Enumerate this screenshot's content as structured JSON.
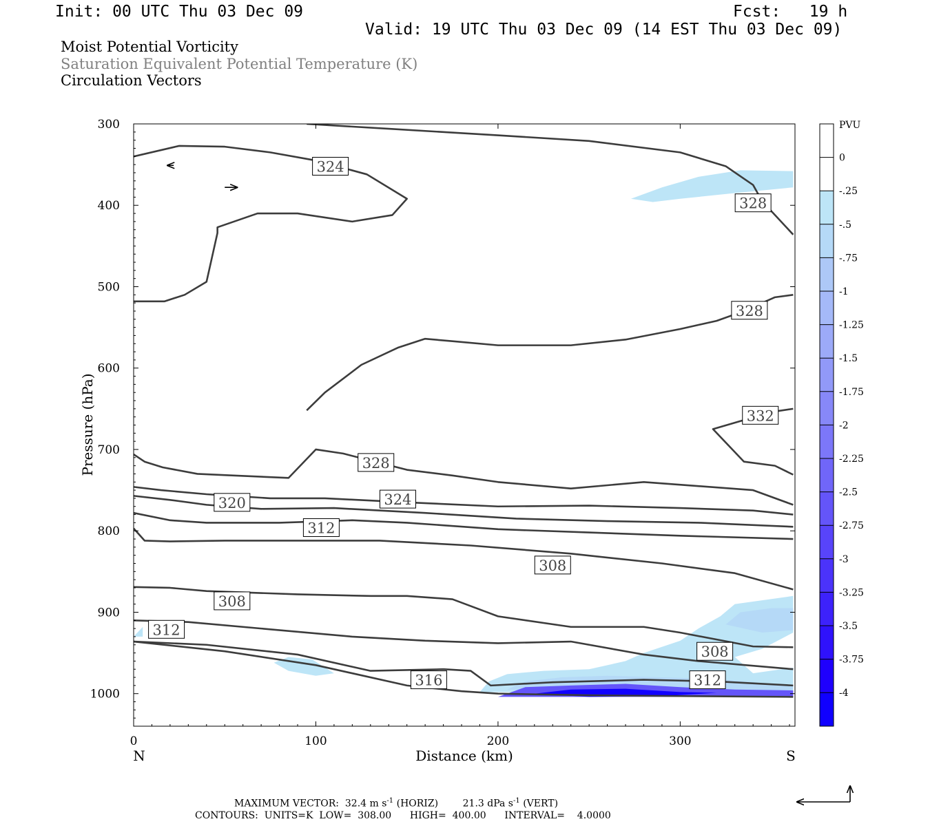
{
  "header": {
    "init": "Init: 00 UTC Thu 03 Dec 09",
    "fcst": "Fcst:   19 h",
    "valid": "Valid: 19 UTC Thu 03 Dec 09 (14 EST Thu 03 Dec 09)"
  },
  "titles": {
    "line1": "Moist Potential Vorticity",
    "line2": "Saturation Equivalent Potential Temperature (K)",
    "line3": "Circulation Vectors",
    "line2_color": "#808080"
  },
  "footer": {
    "max_vector_prefix": "MAXIMUM VECTOR:  32.4 m s",
    "max_vector_mid": " (HORIZ)        21.3 dPa s",
    "max_vector_end": " (VERT)",
    "sup": "-1",
    "contours": "CONTOURS:  UNITS=K  LOW=  308.00      HIGH=  400.00      INTERVAL=    4.0000"
  },
  "chart_data": {
    "type": "cross-section",
    "x_axis": {
      "label": "Distance (km)",
      "range": [
        0,
        363
      ],
      "ticks": [
        0,
        100,
        200,
        300
      ],
      "tick_labels": [
        "0",
        "100",
        "200",
        "300"
      ],
      "end_labels": [
        "N",
        "S"
      ]
    },
    "y_axis": {
      "label": "Pressure (hPa)",
      "range": [
        300,
        1040
      ],
      "ticks": [
        300,
        400,
        500,
        600,
        700,
        800,
        900,
        1000
      ],
      "tick_labels": [
        "300",
        "400",
        "500",
        "600",
        "700",
        "800",
        "900",
        "1000"
      ],
      "inverted": true
    },
    "colorbar": {
      "unit": "PVU",
      "labels": [
        "0",
        "-.25",
        "-.5",
        "-.75",
        "-1",
        "-1.25",
        "-1.5",
        "-1.75",
        "-2",
        "-2.25",
        "-2.5",
        "-2.75",
        "-3",
        "-3.25",
        "-3.5",
        "-3.75",
        "-4"
      ],
      "colors": [
        "#ffffff",
        "#ffffff",
        "#bde5f7",
        "#b5d9f7",
        "#adc8f7",
        "#a5b9f8",
        "#9caaf8",
        "#9199f8",
        "#8788f8",
        "#7c77f9",
        "#7066f9",
        "#6455f9",
        "#5844fa",
        "#4b33fa",
        "#3d22fb",
        "#2f12fc",
        "#1f00fd",
        "#1000ff"
      ]
    },
    "contour_labels": [
      {
        "value": 324,
        "x": 108,
        "p": 352
      },
      {
        "value": 328,
        "x": 340,
        "p": 397
      },
      {
        "value": 328,
        "x": 338,
        "p": 529
      },
      {
        "value": 332,
        "x": 344,
        "p": 658
      },
      {
        "value": 328,
        "x": 133,
        "p": 716
      },
      {
        "value": 320,
        "x": 54,
        "p": 765
      },
      {
        "value": 324,
        "x": 145,
        "p": 761
      },
      {
        "value": 312,
        "x": 103,
        "p": 796
      },
      {
        "value": 308,
        "x": 230,
        "p": 842
      },
      {
        "value": 308,
        "x": 54,
        "p": 886
      },
      {
        "value": 312,
        "x": 18,
        "p": 921
      },
      {
        "value": 308,
        "x": 319,
        "p": 948
      },
      {
        "value": 316,
        "x": 162,
        "p": 983
      },
      {
        "value": 312,
        "x": 315,
        "p": 983
      }
    ],
    "contours": [
      {
        "value": 324,
        "points": [
          [
            0,
            340
          ],
          [
            25,
            327
          ],
          [
            50,
            328
          ],
          [
            75,
            335
          ],
          [
            100,
            345
          ],
          [
            128,
            362
          ],
          [
            150,
            392
          ],
          [
            142,
            412
          ],
          [
            120,
            420
          ],
          [
            90,
            410
          ],
          [
            68,
            410
          ],
          [
            46,
            427
          ],
          [
            46,
            434
          ],
          [
            40,
            494
          ],
          [
            28,
            510
          ],
          [
            17,
            518
          ],
          [
            0,
            518
          ]
        ]
      },
      {
        "value": 328,
        "points": [
          [
            95,
            300
          ],
          [
            140,
            306
          ],
          [
            200,
            314
          ],
          [
            250,
            321
          ],
          [
            300,
            335
          ],
          [
            325,
            352
          ],
          [
            340,
            375
          ],
          [
            345,
            395
          ],
          [
            362,
            436
          ]
        ]
      },
      {
        "value": 328,
        "points": [
          [
            95,
            652
          ],
          [
            105,
            630
          ],
          [
            125,
            596
          ],
          [
            145,
            575
          ],
          [
            160,
            564
          ],
          [
            175,
            567
          ],
          [
            200,
            572
          ],
          [
            240,
            572
          ],
          [
            270,
            565
          ],
          [
            300,
            552
          ],
          [
            320,
            542
          ],
          [
            335,
            530
          ],
          [
            352,
            513
          ],
          [
            362,
            510
          ]
        ]
      },
      {
        "value": 332,
        "points": [
          [
            362,
            650
          ],
          [
            350,
            654
          ],
          [
            318,
            675
          ],
          [
            335,
            715
          ],
          [
            352,
            720
          ],
          [
            362,
            731
          ]
        ]
      },
      {
        "value": 328,
        "points": [
          [
            0,
            706
          ],
          [
            6,
            715
          ],
          [
            16,
            722
          ],
          [
            35,
            730
          ],
          [
            55,
            732
          ],
          [
            85,
            735
          ],
          [
            100,
            700
          ],
          [
            115,
            705
          ],
          [
            150,
            725
          ],
          [
            175,
            732
          ],
          [
            200,
            740
          ],
          [
            240,
            748
          ],
          [
            280,
            740
          ],
          [
            310,
            745
          ],
          [
            340,
            750
          ],
          [
            362,
            768
          ]
        ]
      },
      {
        "value": 324,
        "points": [
          [
            0,
            746
          ],
          [
            15,
            750
          ],
          [
            40,
            755
          ],
          [
            75,
            760
          ],
          [
            105,
            760
          ],
          [
            150,
            765
          ],
          [
            200,
            770
          ],
          [
            250,
            769
          ],
          [
            300,
            772
          ],
          [
            340,
            775
          ],
          [
            362,
            780
          ]
        ]
      },
      {
        "value": 320,
        "points": [
          [
            0,
            757
          ],
          [
            20,
            762
          ],
          [
            40,
            768
          ],
          [
            70,
            773
          ],
          [
            110,
            772
          ],
          [
            160,
            778
          ],
          [
            210,
            785
          ],
          [
            260,
            788
          ],
          [
            310,
            790
          ],
          [
            362,
            795
          ]
        ]
      },
      {
        "value": 316,
        "points": [
          [
            0,
            778
          ],
          [
            20,
            787
          ],
          [
            40,
            790
          ],
          [
            80,
            790
          ],
          [
            120,
            787
          ],
          [
            150,
            790
          ],
          [
            200,
            798
          ],
          [
            250,
            802
          ],
          [
            300,
            806
          ],
          [
            362,
            810
          ]
        ]
      },
      {
        "value": 312,
        "points": [
          [
            0,
            797
          ],
          [
            6,
            812
          ],
          [
            20,
            813
          ],
          [
            50,
            812
          ],
          [
            95,
            812
          ],
          [
            135,
            812
          ],
          [
            185,
            818
          ],
          [
            240,
            828
          ],
          [
            290,
            840
          ],
          [
            330,
            852
          ],
          [
            362,
            872
          ]
        ]
      },
      {
        "value": 308,
        "points": [
          [
            0,
            869
          ],
          [
            20,
            870
          ],
          [
            40,
            874
          ],
          [
            90,
            878
          ],
          [
            130,
            880
          ],
          [
            150,
            880
          ],
          [
            175,
            884
          ],
          [
            200,
            905
          ],
          [
            240,
            918
          ],
          [
            280,
            918
          ],
          [
            300,
            925
          ],
          [
            340,
            942
          ],
          [
            362,
            943
          ]
        ]
      },
      {
        "value": 312,
        "points": [
          [
            0,
            910
          ],
          [
            30,
            912
          ],
          [
            70,
            920
          ],
          [
            120,
            930
          ],
          [
            160,
            935
          ],
          [
            200,
            938
          ],
          [
            240,
            936
          ],
          [
            280,
            952
          ],
          [
            310,
            960
          ],
          [
            362,
            970
          ]
        ]
      },
      {
        "value": 316,
        "points": [
          [
            0,
            936
          ],
          [
            40,
            940
          ],
          [
            90,
            952
          ],
          [
            130,
            972
          ],
          [
            170,
            970
          ],
          [
            185,
            972
          ],
          [
            196,
            990
          ],
          [
            230,
            986
          ],
          [
            280,
            983
          ],
          [
            320,
            985
          ],
          [
            362,
            990
          ]
        ]
      },
      {
        "value": 320,
        "points": [
          [
            0,
            936
          ],
          [
            50,
            948
          ],
          [
            100,
            965
          ],
          [
            150,
            990
          ],
          [
            180,
            997
          ],
          [
            200,
            1000
          ],
          [
            250,
            1002
          ],
          [
            300,
            1003
          ],
          [
            362,
            1004
          ]
        ]
      }
    ],
    "shaded_regions": [
      {
        "level": -0.25,
        "points": [
          [
            273,
            392
          ],
          [
            290,
            378
          ],
          [
            310,
            365
          ],
          [
            333,
            357
          ],
          [
            362,
            358
          ],
          [
            362,
            378
          ],
          [
            330,
            385
          ],
          [
            300,
            392
          ],
          [
            285,
            396
          ]
        ]
      },
      {
        "level": -0.25,
        "points": [
          [
            0,
            930
          ],
          [
            5,
            918
          ],
          [
            5,
            930
          ]
        ]
      },
      {
        "level": -0.25,
        "points": [
          [
            77,
            962
          ],
          [
            85,
            955
          ],
          [
            98,
            958
          ],
          [
            110,
            975
          ],
          [
            100,
            978
          ],
          [
            85,
            972
          ]
        ]
      },
      {
        "level": -0.25,
        "points": [
          [
            190,
            998
          ],
          [
            195,
            985
          ],
          [
            205,
            976
          ],
          [
            225,
            972
          ],
          [
            250,
            970
          ],
          [
            270,
            960
          ],
          [
            280,
            950
          ],
          [
            300,
            935
          ],
          [
            310,
            920
          ],
          [
            322,
            905
          ],
          [
            330,
            890
          ],
          [
            362,
            880
          ],
          [
            362,
            925
          ],
          [
            345,
            945
          ],
          [
            330,
            955
          ],
          [
            340,
            975
          ],
          [
            362,
            968
          ],
          [
            362,
            1000
          ]
        ]
      },
      {
        "level": -0.5,
        "points": [
          [
            325,
            915
          ],
          [
            333,
            900
          ],
          [
            350,
            895
          ],
          [
            362,
            895
          ],
          [
            362,
            922
          ],
          [
            345,
            925
          ]
        ]
      },
      {
        "level": -0.5,
        "points": [
          [
            205,
            995
          ],
          [
            215,
            985
          ],
          [
            235,
            980
          ],
          [
            260,
            978
          ],
          [
            290,
            980
          ],
          [
            320,
            982
          ],
          [
            362,
            990
          ],
          [
            362,
            1000
          ]
        ]
      },
      {
        "level": -2.5,
        "points": [
          [
            205,
            1000
          ],
          [
            215,
            992
          ],
          [
            240,
            990
          ],
          [
            270,
            988
          ],
          [
            300,
            992
          ],
          [
            330,
            995
          ],
          [
            362,
            996
          ],
          [
            362,
            1004
          ],
          [
            200,
            1004
          ]
        ]
      },
      {
        "level": -4,
        "points": [
          [
            220,
            1000
          ],
          [
            240,
            995
          ],
          [
            270,
            994
          ],
          [
            300,
            998
          ],
          [
            320,
            999
          ],
          [
            290,
            1003
          ],
          [
            250,
            1004
          ]
        ]
      }
    ],
    "vectors": [
      {
        "x": 50,
        "p": 378,
        "u": 2,
        "w": 0
      },
      {
        "x": 22,
        "p": 351,
        "u": -1,
        "w": 0
      }
    ]
  }
}
